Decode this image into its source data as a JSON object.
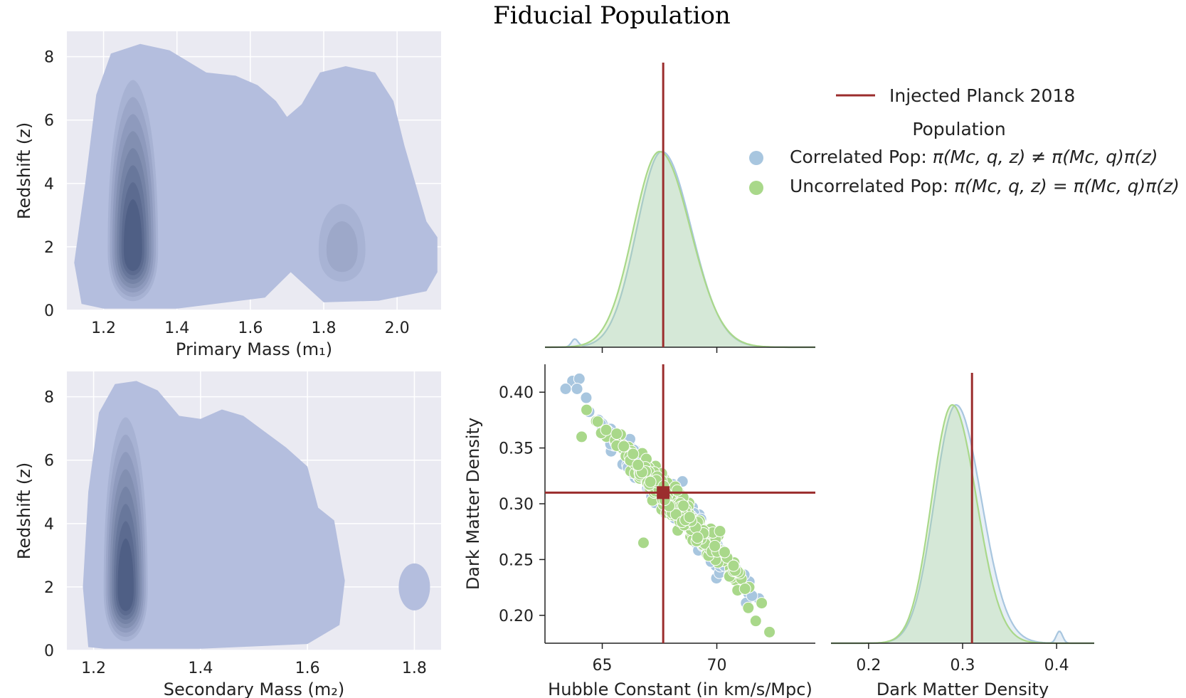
{
  "title": "Fiducial Population",
  "colors": {
    "correlated": "#a8c6df",
    "uncorrelated": "#a9d88a",
    "injected": "#9b2d2d",
    "kde_base": "#b4bede",
    "kde_dark": "#4a5a80",
    "kde_panel_bg": "#eaeaf2"
  },
  "chart_data": [
    {
      "type": "heatmap",
      "kind": "kde-contour",
      "xlabel": "Primary Mass (m₁)",
      "ylabel": "Redshift (z)",
      "xlim": [
        1.1,
        2.12
      ],
      "ylim": [
        0,
        8.8
      ],
      "xticks": [
        "1.2",
        "1.4",
        "1.6",
        "1.8",
        "2.0"
      ],
      "yticks": [
        "0",
        "2",
        "4",
        "6",
        "8"
      ],
      "grid": true,
      "peaks": [
        {
          "x": 1.28,
          "y": 1.9,
          "levels": 8
        },
        {
          "x": 1.85,
          "y": 1.9,
          "levels": 3
        }
      ]
    },
    {
      "type": "heatmap",
      "kind": "kde-contour",
      "xlabel": "Secondary Mass (m₂)",
      "ylabel": "Redshift (z)",
      "xlim": [
        1.15,
        1.85
      ],
      "ylim": [
        0,
        8.8
      ],
      "xticks": [
        "1.2",
        "1.4",
        "1.6",
        "1.8"
      ],
      "yticks": [
        "0",
        "2",
        "4",
        "6",
        "8"
      ],
      "grid": true,
      "peaks": [
        {
          "x": 1.26,
          "y": 1.9,
          "levels": 8
        },
        {
          "x": 1.8,
          "y": 2.0,
          "levels": 1
        }
      ]
    },
    {
      "type": "area",
      "kind": "marginal-kde",
      "variable": "Hubble Constant",
      "xlim": [
        62.5,
        74.3
      ],
      "injected": 67.66,
      "series": [
        {
          "name": "Correlated Pop",
          "mode": 67.6,
          "sigma": 1.15,
          "bump": {
            "x": 63.8,
            "height": 0.04
          }
        },
        {
          "name": "Uncorrelated Pop",
          "mode": 67.5,
          "sigma": 1.2
        }
      ]
    },
    {
      "type": "scatter",
      "xlabel": "Hubble Constant (in km/s/Mpc)",
      "ylabel": "Dark Matter Density",
      "xlim": [
        62.5,
        74.3
      ],
      "ylim": [
        0.175,
        0.425
      ],
      "xticks": [
        "65",
        "70"
      ],
      "yticks": [
        "0.20",
        "0.25",
        "0.30",
        "0.35",
        "0.40"
      ],
      "injected": {
        "x": 67.66,
        "y": 0.31
      },
      "relation": {
        "slope": -0.0225,
        "intercept_at_x0": 0.31,
        "x0": 67.66
      },
      "series": [
        {
          "name": "Correlated Pop",
          "x_range": [
            63.5,
            72.5
          ],
          "y_spread": 0.012,
          "count": 260,
          "outliers": [
            [
              63.7,
              0.41
            ],
            [
              64.0,
              0.412
            ],
            [
              63.4,
              0.403
            ],
            [
              63.9,
              0.403
            ],
            [
              64.3,
              0.395
            ],
            [
              68.5,
              0.32
            ]
          ]
        },
        {
          "name": "Uncorrelated Pop",
          "x_range": [
            64.1,
            72.3
          ],
          "y_spread": 0.013,
          "count": 320,
          "outliers": [
            [
              64.1,
              0.36
            ],
            [
              66.8,
              0.265
            ],
            [
              71.7,
              0.195
            ],
            [
              72.3,
              0.185
            ]
          ]
        }
      ]
    },
    {
      "type": "area",
      "kind": "marginal-kde",
      "xlabel": "Dark Matter Density",
      "xlim": [
        0.16,
        0.44
      ],
      "xticks": [
        "0.2",
        "0.3",
        "0.4"
      ],
      "injected": 0.31,
      "series": [
        {
          "name": "Correlated Pop",
          "mode": 0.293,
          "sigma": 0.024,
          "bump": {
            "x": 0.403,
            "height": 0.05
          }
        },
        {
          "name": "Uncorrelated Pop",
          "mode": 0.289,
          "sigma": 0.023
        }
      ]
    }
  ],
  "legend": {
    "injected_label": "Injected Planck 2018",
    "header": "Population",
    "entries": [
      {
        "label_prefix": "Correlated Pop: ",
        "formula": "π(M⁣c, q, z) ≠ π(M⁣c, q)π(z)"
      },
      {
        "label_prefix": "Uncorrelated Pop: ",
        "formula": "π(M⁣c, q, z) = π(M⁣c, q)π(z)"
      }
    ]
  }
}
